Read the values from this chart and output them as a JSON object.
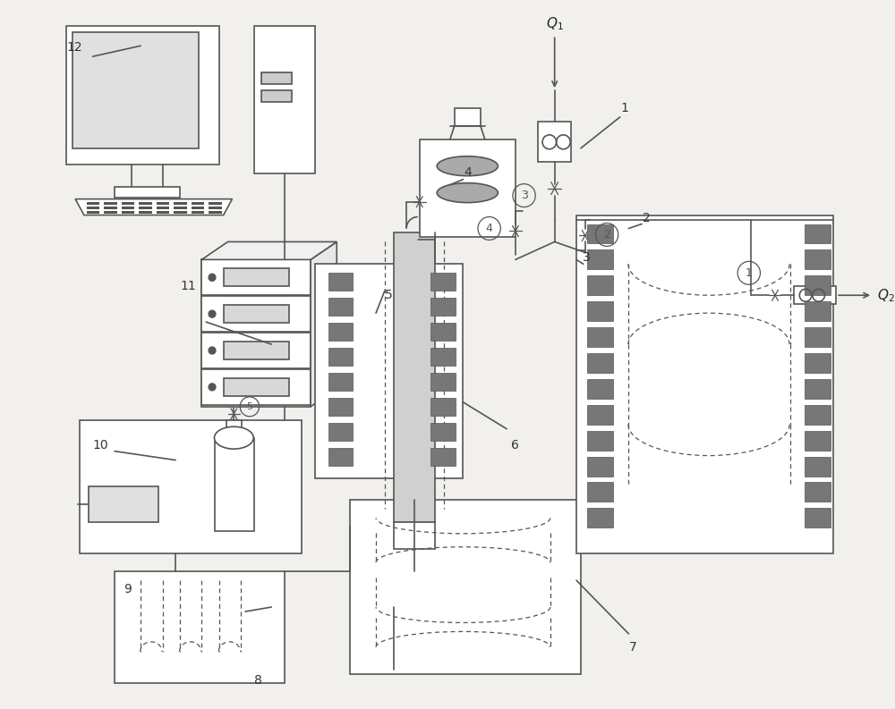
{
  "bg_color": "#f2f0ed",
  "lc": "#555555",
  "lc2": "#888888",
  "fig_width": 10.0,
  "fig_height": 7.93,
  "dpi": 100
}
